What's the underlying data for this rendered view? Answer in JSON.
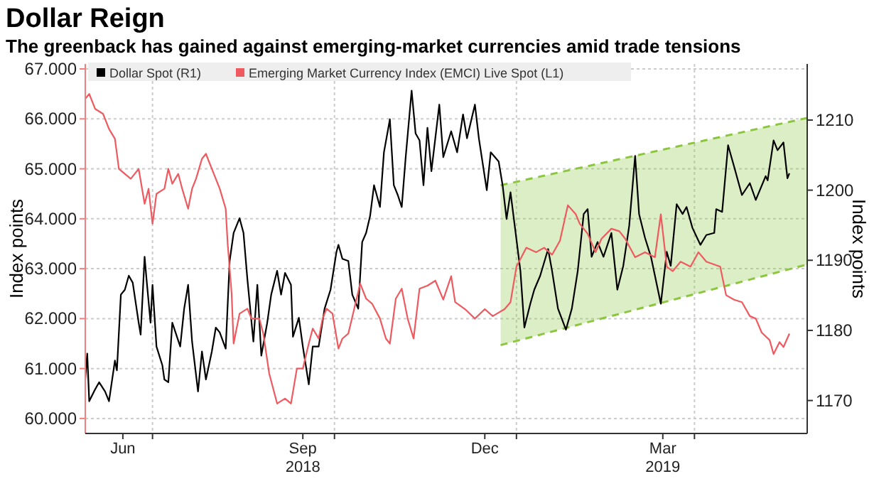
{
  "chart_data": {
    "type": "line",
    "title": "Dollar Reign",
    "subtitle": "The greenback has gained against emerging-market currencies amid trade tensions",
    "ylabel": "Index points",
    "y2label": "Index points",
    "xlim": [
      "2018-05-28",
      "2019-05-28"
    ],
    "xticks": [
      {
        "value": "2018-06-16",
        "label": "Jun"
      },
      {
        "value": "2018-07-01",
        "label": null
      },
      {
        "value": "2018-09-15",
        "label": "Sep\n2018"
      },
      {
        "value": "2018-10-01",
        "label": null
      },
      {
        "value": "2018-12-16",
        "label": "Dec"
      },
      {
        "value": "2019-01-01",
        "label": null
      },
      {
        "value": "2019-03-16",
        "label": "Mar\n2019"
      },
      {
        "value": "2019-04-01",
        "label": null
      }
    ],
    "ylim": [
      59.7,
      67.1
    ],
    "yticks": [
      {
        "value": 60,
        "label": "60.000"
      },
      {
        "value": 61,
        "label": "61.000"
      },
      {
        "value": 62,
        "label": "62.000"
      },
      {
        "value": 63,
        "label": "63.000"
      },
      {
        "value": 64,
        "label": "64.000"
      },
      {
        "value": 65,
        "label": "65.000"
      },
      {
        "value": 66,
        "label": "66.000"
      },
      {
        "value": 67,
        "label": "67.000"
      }
    ],
    "y2lim": [
      1165.3,
      1218
    ],
    "y2ticks": [
      1170,
      1180,
      1190,
      1200,
      1210
    ],
    "grid": true,
    "legend": "top left",
    "series": [
      {
        "type": "line",
        "axis": "y2",
        "color": "#8cc63f",
        "line_style": "dashed",
        "x": [
          "2018-12-24",
          "2019-05-28"
        ],
        "values": [
          1200.7,
          1210.3
        ]
      },
      {
        "type": "line",
        "axis": "y2",
        "color": "#8cc63f",
        "line_style": "dashed",
        "x": [
          "2018-12-24",
          "2019-05-28"
        ],
        "values": [
          1177.9,
          1189.4
        ]
      },
      {
        "name": "Dollar Spot (R1)",
        "axis": "y2",
        "color": "#000000",
        "x": [
          "2018-05-28",
          "2018-05-29",
          "2018-05-30",
          "2018-06-02",
          "2018-06-04",
          "2018-06-07",
          "2018-06-09",
          "2018-06-12",
          "2018-06-13",
          "2018-06-15",
          "2018-06-17",
          "2018-06-19",
          "2018-06-21",
          "2018-06-24",
          "2018-06-25",
          "2018-06-27",
          "2018-06-28",
          "2018-06-30",
          "2018-07-01",
          "2018-07-03",
          "2018-07-06",
          "2018-07-07",
          "2018-07-09",
          "2018-07-11",
          "2018-07-15",
          "2018-07-17",
          "2018-07-19",
          "2018-07-21",
          "2018-07-24",
          "2018-07-26",
          "2018-07-28",
          "2018-07-31",
          "2018-08-02",
          "2018-08-04",
          "2018-08-07",
          "2018-08-09",
          "2018-08-11",
          "2018-08-14",
          "2018-08-16",
          "2018-08-18",
          "2018-08-21",
          "2018-08-23",
          "2018-08-25",
          "2018-08-28",
          "2018-08-30",
          "2018-09-02",
          "2018-09-04",
          "2018-09-06",
          "2018-09-09",
          "2018-09-10",
          "2018-09-13",
          "2018-09-15",
          "2018-09-18",
          "2018-09-20",
          "2018-09-23",
          "2018-09-26",
          "2018-09-29",
          "2018-10-02",
          "2018-10-03",
          "2018-10-05",
          "2018-10-08",
          "2018-10-10",
          "2018-10-13",
          "2018-10-15",
          "2018-10-17",
          "2018-10-19",
          "2018-10-21",
          "2018-10-24",
          "2018-10-26",
          "2018-10-29",
          "2018-10-31",
          "2018-11-02",
          "2018-11-04",
          "2018-11-06",
          "2018-11-09",
          "2018-11-11",
          "2018-11-13",
          "2018-11-15",
          "2018-11-17",
          "2018-11-19",
          "2018-11-23",
          "2018-11-25",
          "2018-11-29",
          "2018-12-02",
          "2018-12-05",
          "2018-12-07",
          "2018-12-11",
          "2018-12-13",
          "2018-12-17",
          "2018-12-19",
          "2018-12-23",
          "2018-12-25",
          "2018-12-27",
          "2018-12-29",
          "2019-01-03",
          "2019-01-05",
          "2019-01-08",
          "2019-01-10",
          "2019-01-13",
          "2019-01-17",
          "2019-01-19",
          "2019-01-22",
          "2019-01-26",
          "2019-01-29",
          "2019-02-01",
          "2019-02-04",
          "2019-02-06",
          "2019-02-08",
          "2019-02-11",
          "2019-02-14",
          "2019-02-18",
          "2019-02-21",
          "2019-02-24",
          "2019-02-27",
          "2019-03-02",
          "2019-03-04",
          "2019-03-07",
          "2019-03-10",
          "2019-03-15",
          "2019-03-18",
          "2019-03-20",
          "2019-03-23",
          "2019-03-26",
          "2019-03-28",
          "2019-03-31",
          "2019-04-04",
          "2019-04-07",
          "2019-04-11",
          "2019-04-12",
          "2019-04-15",
          "2019-04-18",
          "2019-04-21",
          "2019-04-25",
          "2019-04-29",
          "2019-05-02",
          "2019-05-07",
          "2019-05-08",
          "2019-05-11",
          "2019-05-13",
          "2019-05-16",
          "2019-05-18",
          "2019-05-19"
        ],
        "values": [
          1173.0,
          1176.7,
          1169.9,
          1171.6,
          1172.6,
          1171.3,
          1169.9,
          1175.7,
          1174.3,
          1185.1,
          1185.8,
          1187.8,
          1186.8,
          1181.1,
          1179.4,
          1190.5,
          1187.2,
          1181.1,
          1186.5,
          1177.7,
          1175.0,
          1173.0,
          1172.6,
          1181.1,
          1177.7,
          1183.1,
          1186.5,
          1178.4,
          1171.3,
          1177.0,
          1173.0,
          1177.0,
          1180.4,
          1179.7,
          1177.4,
          1189.9,
          1193.9,
          1196.0,
          1193.9,
          1187.2,
          1178.4,
          1186.5,
          1176.4,
          1181.1,
          1185.1,
          1188.5,
          1185.1,
          1188.2,
          1186.5,
          1179.1,
          1181.8,
          1177.7,
          1172.3,
          1177.7,
          1177.7,
          1183.1,
          1185.8,
          1191.2,
          1192.2,
          1190.2,
          1189.9,
          1185.1,
          1183.1,
          1192.6,
          1193.9,
          1196.3,
          1200.7,
          1197.6,
          1205.4,
          1210.1,
          1200.7,
          1199.3,
          1197.6,
          1204.7,
          1214.2,
          1208.1,
          1207.1,
          1200.7,
          1208.9,
          1202.7,
          1212.2,
          1204.7,
          1208.4,
          1205.4,
          1210.8,
          1207.4,
          1212.2,
          1207.4,
          1200.0,
          1205.4,
          1204.1,
          1200.7,
          1195.9,
          1199.7,
          1188.5,
          1180.4,
          1183.8,
          1185.8,
          1187.8,
          1191.6,
          1188.5,
          1183.1,
          1180.1,
          1183.1,
          1188.5,
          1196.6,
          1197.3,
          1190.5,
          1192.6,
          1190.5,
          1193.9,
          1185.8,
          1189.2,
          1194.9,
          1204.9,
          1196.6,
          1193.2,
          1190.5,
          1183.8,
          1191.2,
          1189.2,
          1198.0,
          1196.6,
          1197.6,
          1194.6,
          1192.2,
          1193.6,
          1193.9,
          1197.3,
          1196.9,
          1206.4,
          1203.4,
          1199.3,
          1201.0,
          1198.6,
          1202.0,
          1201.4,
          1207.1,
          1205.7,
          1206.8,
          1201.7,
          1202.4
        ]
      },
      {
        "name": "Emerging Market Currency Index (EMCI) Live Spot (L1)",
        "color": "#ee5a5f",
        "x": [
          "2018-05-28",
          "2018-05-30",
          "2018-06-02",
          "2018-06-06",
          "2018-06-09",
          "2018-06-12",
          "2018-06-14",
          "2018-06-17",
          "2018-06-20",
          "2018-06-24",
          "2018-06-27",
          "2018-06-29",
          "2018-07-01",
          "2018-07-03",
          "2018-07-07",
          "2018-07-09",
          "2018-07-11",
          "2018-07-14",
          "2018-07-16",
          "2018-07-19",
          "2018-07-21",
          "2018-07-23",
          "2018-07-26",
          "2018-07-28",
          "2018-07-31",
          "2018-08-02",
          "2018-08-04",
          "2018-08-07",
          "2018-08-08",
          "2018-08-10",
          "2018-08-11",
          "2018-08-14",
          "2018-08-18",
          "2018-08-20",
          "2018-08-24",
          "2018-08-26",
          "2018-08-29",
          "2018-09-02",
          "2018-09-06",
          "2018-09-09",
          "2018-09-12",
          "2018-09-15",
          "2018-09-18",
          "2018-09-20",
          "2018-09-23",
          "2018-09-25",
          "2018-09-27",
          "2018-09-30",
          "2018-10-03",
          "2018-10-05",
          "2018-10-08",
          "2018-10-11",
          "2018-10-14",
          "2018-10-17",
          "2018-10-20",
          "2018-10-24",
          "2018-10-27",
          "2018-10-29",
          "2018-11-01",
          "2018-11-04",
          "2018-11-07",
          "2018-11-10",
          "2018-11-13",
          "2018-11-17",
          "2018-11-21",
          "2018-11-25",
          "2018-11-29",
          "2018-12-01",
          "2018-12-06",
          "2018-12-11",
          "2018-12-16",
          "2018-12-20",
          "2018-12-26",
          "2018-12-29",
          "2019-01-01",
          "2019-01-06",
          "2019-01-11",
          "2019-01-15",
          "2019-01-19",
          "2019-01-23",
          "2019-01-27",
          "2019-01-31",
          "2019-02-02",
          "2019-02-06",
          "2019-02-10",
          "2019-02-13",
          "2019-02-18",
          "2019-02-22",
          "2019-02-25",
          "2019-03-02",
          "2019-03-07",
          "2019-03-12",
          "2019-03-15",
          "2019-03-18",
          "2019-03-21",
          "2019-03-25",
          "2019-03-30",
          "2019-04-03",
          "2019-04-07",
          "2019-04-14",
          "2019-04-17",
          "2019-04-21",
          "2019-04-25",
          "2019-04-29",
          "2019-05-02",
          "2019-05-05",
          "2019-05-09",
          "2019-05-11",
          "2019-05-14",
          "2019-05-16",
          "2019-05-19"
        ],
        "values": [
          66.4,
          66.5,
          66.2,
          66.1,
          65.8,
          65.6,
          65.0,
          64.9,
          64.8,
          65.0,
          64.3,
          64.6,
          63.9,
          64.5,
          64.6,
          65.0,
          64.7,
          64.9,
          64.6,
          64.2,
          64.6,
          64.8,
          65.2,
          65.3,
          65.0,
          64.8,
          64.6,
          64.2,
          63.5,
          62.5,
          61.5,
          62.1,
          62.2,
          62.0,
          62.0,
          61.7,
          60.9,
          60.3,
          60.4,
          60.3,
          61.0,
          61.0,
          61.5,
          61.8,
          61.6,
          62.0,
          62.2,
          62.1,
          61.4,
          61.6,
          61.7,
          62.2,
          62.7,
          62.4,
          62.3,
          62.0,
          61.6,
          61.5,
          62.4,
          62.6,
          62.0,
          61.6,
          62.6,
          62.66,
          62.76,
          62.38,
          62.85,
          62.33,
          62.19,
          62.0,
          62.19,
          62.05,
          62.19,
          62.33,
          63.04,
          63.42,
          63.33,
          63.42,
          63.28,
          63.56,
          64.27,
          64.09,
          63.9,
          63.7,
          63.33,
          63.6,
          63.8,
          63.75,
          63.6,
          63.23,
          63.33,
          63.23,
          64.09,
          63.04,
          62.95,
          63.14,
          63.04,
          63.33,
          63.14,
          63.04,
          62.47,
          62.38,
          62.33,
          62.05,
          62.0,
          61.72,
          61.57,
          61.29,
          61.53,
          61.43,
          61.7
        ]
      }
    ]
  }
}
